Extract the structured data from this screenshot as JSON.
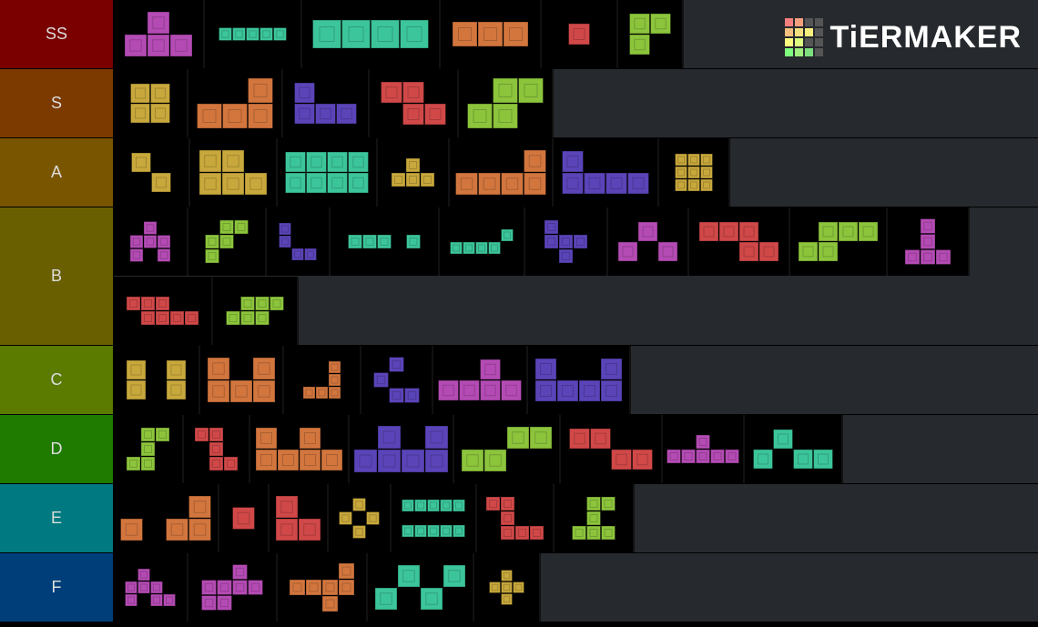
{
  "logo": "TiERMAKER",
  "tiers": [
    {
      "label": "SS"
    },
    {
      "label": "S"
    },
    {
      "label": "A"
    },
    {
      "label": "B"
    },
    {
      "label": "C"
    },
    {
      "label": "D"
    },
    {
      "label": "E"
    },
    {
      "label": "F"
    }
  ]
}
